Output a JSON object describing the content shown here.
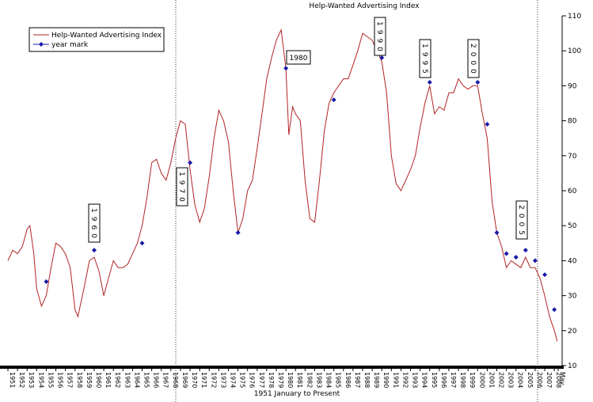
{
  "chart_data": {
    "type": "line",
    "title": "Help-Wanted Advertising Index",
    "x_label": "1951 January to Present",
    "xlim": [
      1951,
      2008.4
    ],
    "ylim": [
      10,
      110
    ],
    "yticks": [
      10,
      20,
      30,
      40,
      50,
      60,
      70,
      80,
      90,
      100,
      110
    ],
    "xticks": [
      1951,
      1952,
      1953,
      1954,
      1955,
      1956,
      1957,
      1958,
      1959,
      1960,
      1961,
      1962,
      1963,
      1964,
      1965,
      1966,
      1967,
      1968,
      1969,
      1970,
      1971,
      1972,
      1973,
      1974,
      1975,
      1976,
      1977,
      1978,
      1979,
      1980,
      1981,
      1982,
      1983,
      1984,
      1985,
      1986,
      1987,
      1988,
      1989,
      1990,
      1991,
      1992,
      1993,
      1994,
      1995,
      1996,
      1997,
      1998,
      1999,
      2000,
      2001,
      2002,
      2003,
      2004,
      2005,
      2006,
      2007,
      2008,
      {
        "value": 2008.4,
        "label": "May"
      }
    ],
    "series": [
      {
        "name": "Help-Wanted Advertising Index",
        "color": "#b22222",
        "x": [
          1951,
          1951.5,
          1952,
          1952.5,
          1953,
          1953.3,
          1953.7,
          1954,
          1954.5,
          1955,
          1955.5,
          1956,
          1956.5,
          1957,
          1957.5,
          1958,
          1958.3,
          1959,
          1959.5,
          1960,
          1960.5,
          1961,
          1961.5,
          1962,
          1962.5,
          1963,
          1963.5,
          1964,
          1964.5,
          1965,
          1965.5,
          1966,
          1966.5,
          1967,
          1967.5,
          1968,
          1968.5,
          1969,
          1969.5,
          1970,
          1970.5,
          1971,
          1971.5,
          1972,
          1972.5,
          1973,
          1973.5,
          1974,
          1974.5,
          1975,
          1975.5,
          1976,
          1976.5,
          1977,
          1977.5,
          1978,
          1978.5,
          1979,
          1979.5,
          1980,
          1980.3,
          1980.7,
          1981,
          1981.5,
          1982,
          1982.5,
          1983,
          1983.5,
          1984,
          1984.5,
          1985,
          1985.5,
          1986,
          1986.5,
          1987,
          1987.5,
          1988,
          1988.5,
          1989,
          1989.5,
          1990,
          1990.5,
          1991,
          1991.5,
          1992,
          1992.5,
          1993,
          1993.5,
          1994,
          1994.5,
          1995,
          1995.5,
          1996,
          1996.5,
          1997,
          1997.5,
          1998,
          1998.5,
          1999,
          1999.5,
          2000,
          2000.5,
          2001,
          2001.5,
          2002,
          2002.5,
          2003,
          2003.5,
          2004,
          2004.5,
          2005,
          2005.5,
          2006,
          2006.5,
          2007,
          2007.5,
          2008,
          2008.3
        ],
        "values": [
          40,
          43,
          42,
          44,
          49,
          50,
          42,
          32,
          27,
          30,
          38,
          45,
          44,
          42,
          38,
          26,
          24,
          33,
          40,
          41,
          37,
          30,
          35,
          40,
          38,
          38,
          39,
          42,
          45,
          50,
          58,
          68,
          69,
          65,
          63,
          68,
          75,
          80,
          79,
          66,
          56,
          51,
          55,
          64,
          75,
          83,
          80,
          74,
          60,
          48,
          52,
          60,
          63,
          72,
          82,
          92,
          98,
          103,
          106,
          95,
          76,
          84,
          82,
          80,
          63,
          52,
          51,
          63,
          77,
          85,
          88,
          90,
          92,
          92,
          96,
          100,
          105,
          104,
          103,
          100,
          97,
          88,
          70,
          62,
          60,
          63,
          66,
          70,
          78,
          85,
          90,
          82,
          84,
          83,
          88,
          88,
          92,
          90,
          89,
          90,
          90,
          82,
          75,
          57,
          48,
          44,
          38,
          40,
          39,
          38,
          41,
          38,
          38,
          35,
          30,
          24,
          20,
          17
        ]
      },
      {
        "name": "year mark",
        "color": "#1a1aaa",
        "x": [
          1955,
          1960,
          1965,
          1970,
          1975,
          1980,
          1985,
          1990,
          1995,
          2000,
          2001,
          2002,
          2003,
          2004,
          2005,
          2006,
          2007,
          2008
        ],
        "values": [
          34,
          43,
          45,
          68,
          48,
          95,
          86,
          98,
          91,
          91,
          79,
          48,
          42,
          41,
          43,
          40,
          36,
          26
        ]
      }
    ],
    "annotations": [
      "1960",
      "1970",
      "1980",
      "1990",
      "1995",
      "2000",
      "2005"
    ]
  }
}
